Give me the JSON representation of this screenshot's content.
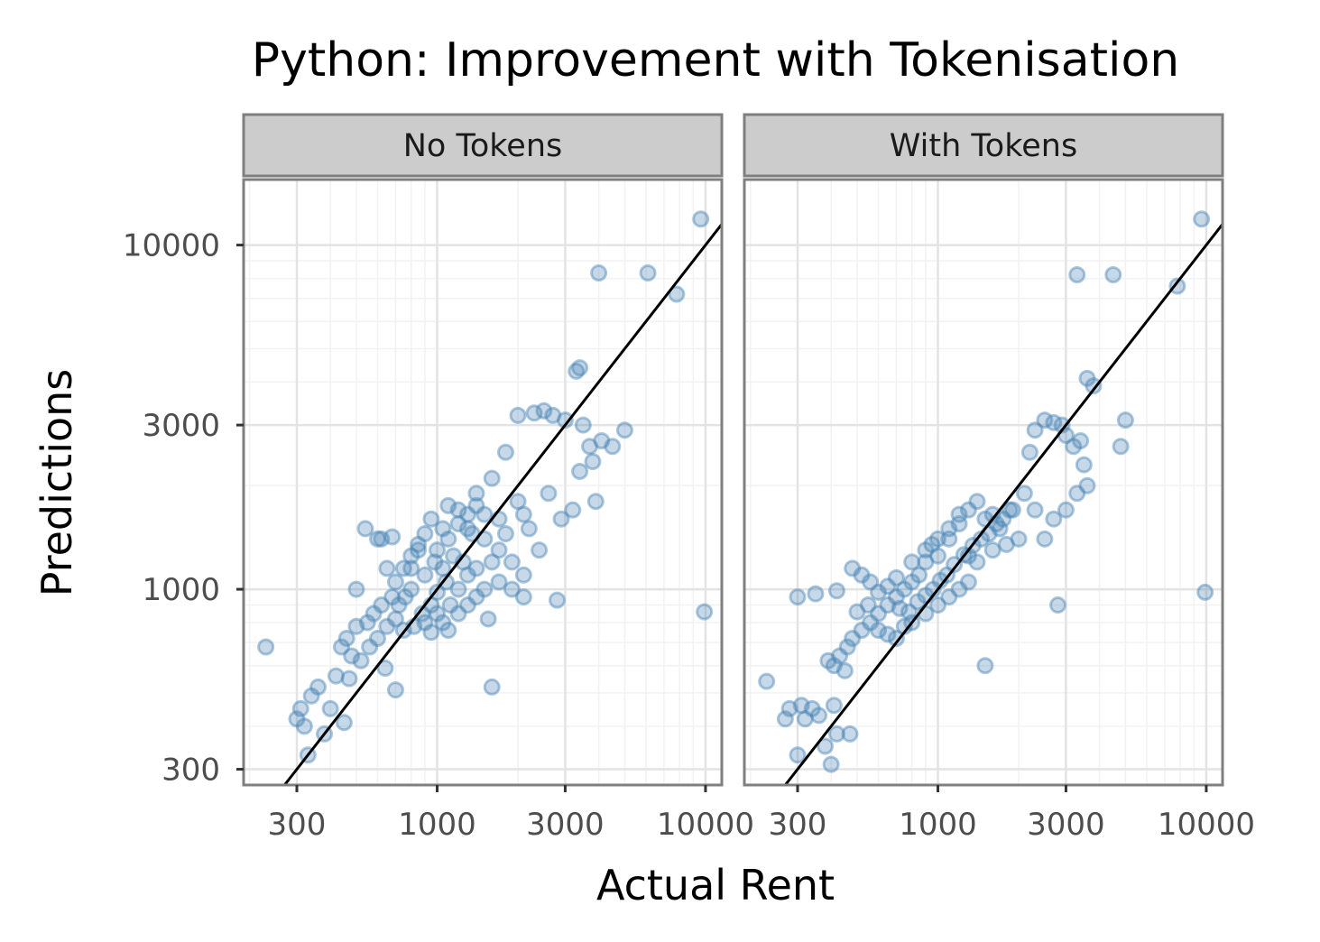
{
  "chart_data": {
    "type": "scatter",
    "title": "Python: Improvement with Tokenisation",
    "xlabel": "Actual Rent",
    "ylabel": "Predictions",
    "x_scale": "log10",
    "y_scale": "log10",
    "xlim": [
      190,
      11500
    ],
    "ylim": [
      270,
      15500
    ],
    "x_ticks": [
      300,
      1000,
      3000,
      10000
    ],
    "x_tick_labels": [
      "300",
      "1000",
      "3000",
      "10000"
    ],
    "y_ticks": [
      300,
      1000,
      3000,
      10000
    ],
    "y_tick_labels": [
      "300",
      "1000",
      "3000",
      "10000"
    ],
    "grid": true,
    "reference_line": "y = x",
    "point_color": "#4682b4",
    "line_color": "#000000",
    "strip_fill": "#cccccc",
    "panels": [
      {
        "name": "No Tokens",
        "points": [
          [
            230,
            680
          ],
          [
            310,
            450
          ],
          [
            300,
            420
          ],
          [
            320,
            400
          ],
          [
            330,
            330
          ],
          [
            340,
            490
          ],
          [
            360,
            520
          ],
          [
            380,
            380
          ],
          [
            400,
            450
          ],
          [
            420,
            560
          ],
          [
            450,
            410
          ],
          [
            470,
            550
          ],
          [
            500,
            1000
          ],
          [
            540,
            1500
          ],
          [
            600,
            1400
          ],
          [
            620,
            1400
          ],
          [
            640,
            590
          ],
          [
            650,
            1150
          ],
          [
            680,
            1420
          ],
          [
            700,
            510
          ],
          [
            1600,
            520
          ],
          [
            1550,
            820
          ],
          [
            2800,
            930
          ],
          [
            3300,
            4300
          ],
          [
            3400,
            4400
          ],
          [
            4000,
            8300
          ],
          [
            4500,
            2600
          ],
          [
            5000,
            2900
          ],
          [
            6100,
            8300
          ],
          [
            7800,
            7200
          ],
          [
            9600,
            11900
          ],
          [
            9900,
            860
          ],
          [
            2000,
            3200
          ],
          [
            2300,
            3250
          ],
          [
            2500,
            3300
          ],
          [
            2700,
            3200
          ],
          [
            3000,
            3100
          ],
          [
            3500,
            3000
          ],
          [
            3700,
            2600
          ],
          [
            3800,
            2350
          ],
          [
            3900,
            1800
          ],
          [
            4100,
            2700
          ],
          [
            3200,
            1700
          ],
          [
            2900,
            1600
          ],
          [
            2600,
            1900
          ],
          [
            2100,
            1650
          ],
          [
            3400,
            2200
          ],
          [
            1800,
            2500
          ],
          [
            1600,
            2100
          ],
          [
            1400,
            1900
          ],
          [
            1200,
            1700
          ],
          [
            1100,
            1750
          ],
          [
            1300,
            1500
          ],
          [
            1500,
            1400
          ],
          [
            1700,
            1300
          ],
          [
            1900,
            1200
          ],
          [
            2100,
            1100
          ],
          [
            2400,
            1300
          ],
          [
            2200,
            1500
          ],
          [
            2000,
            1800
          ],
          [
            1700,
            1600
          ],
          [
            1500,
            1650
          ],
          [
            1350,
            1450
          ],
          [
            1250,
            1200
          ],
          [
            1150,
            1250
          ],
          [
            1050,
            1150
          ],
          [
            980,
            1200
          ],
          [
            900,
            1100
          ],
          [
            850,
            1300
          ],
          [
            800,
            1000
          ],
          [
            760,
            950
          ],
          [
            720,
            900
          ],
          [
            880,
            850
          ],
          [
            950,
            900
          ],
          [
            1000,
            980
          ],
          [
            1080,
            1050
          ],
          [
            1120,
            900
          ],
          [
            1200,
            1000
          ],
          [
            1300,
            1100
          ],
          [
            1400,
            1150
          ],
          [
            1600,
            1200
          ],
          [
            1800,
            1450
          ],
          [
            650,
            780
          ],
          [
            600,
            720
          ],
          [
            560,
            680
          ],
          [
            520,
            620
          ],
          [
            480,
            640
          ],
          [
            700,
            820
          ],
          [
            750,
            760
          ],
          [
            820,
            780
          ],
          [
            900,
            800
          ],
          [
            950,
            750
          ],
          [
            1000,
            850
          ],
          [
            1050,
            800
          ],
          [
            1100,
            760
          ],
          [
            1200,
            850
          ],
          [
            1300,
            900
          ],
          [
            1400,
            950
          ],
          [
            1500,
            1000
          ],
          [
            1700,
            1050
          ],
          [
            1900,
            1000
          ],
          [
            2100,
            950
          ],
          [
            800,
            1250
          ],
          [
            750,
            1150
          ],
          [
            700,
            1050
          ],
          [
            680,
            950
          ],
          [
            620,
            900
          ],
          [
            580,
            850
          ],
          [
            550,
            800
          ],
          [
            500,
            780
          ],
          [
            460,
            720
          ],
          [
            440,
            680
          ],
          [
            1000,
            1300
          ],
          [
            1100,
            1400
          ],
          [
            1200,
            1550
          ],
          [
            1300,
            1650
          ],
          [
            1400,
            1750
          ],
          [
            900,
            1450
          ],
          [
            850,
            1350
          ],
          [
            800,
            1150
          ],
          [
            950,
            1600
          ],
          [
            1050,
            1500
          ]
        ]
      },
      {
        "name": "With Tokens",
        "points": [
          [
            230,
            540
          ],
          [
            270,
            420
          ],
          [
            280,
            450
          ],
          [
            300,
            330
          ],
          [
            310,
            460
          ],
          [
            320,
            420
          ],
          [
            340,
            450
          ],
          [
            360,
            430
          ],
          [
            380,
            350
          ],
          [
            400,
            310
          ],
          [
            410,
            460
          ],
          [
            420,
            380
          ],
          [
            450,
            580
          ],
          [
            470,
            380
          ],
          [
            300,
            950
          ],
          [
            350,
            970
          ],
          [
            420,
            990
          ],
          [
            480,
            1150
          ],
          [
            520,
            1100
          ],
          [
            560,
            1050
          ],
          [
            1500,
            600
          ],
          [
            2800,
            900
          ],
          [
            3300,
            8200
          ],
          [
            4500,
            8200
          ],
          [
            7800,
            7600
          ],
          [
            9600,
            11900
          ],
          [
            9900,
            980
          ],
          [
            5000,
            3100
          ],
          [
            4800,
            2600
          ],
          [
            3600,
            4100
          ],
          [
            3800,
            3900
          ],
          [
            2200,
            2500
          ],
          [
            2300,
            2900
          ],
          [
            2500,
            3100
          ],
          [
            2700,
            3050
          ],
          [
            2900,
            3000
          ],
          [
            3000,
            2800
          ],
          [
            3200,
            2600
          ],
          [
            3400,
            2700
          ],
          [
            3500,
            2300
          ],
          [
            3600,
            2000
          ],
          [
            3300,
            1900
          ],
          [
            3000,
            1700
          ],
          [
            2700,
            1600
          ],
          [
            2500,
            1400
          ],
          [
            2300,
            1700
          ],
          [
            2100,
            1900
          ],
          [
            1900,
            1700
          ],
          [
            1700,
            1500
          ],
          [
            1600,
            1650
          ],
          [
            1500,
            1600
          ],
          [
            1400,
            1800
          ],
          [
            1300,
            1700
          ],
          [
            1200,
            1550
          ],
          [
            1100,
            1400
          ],
          [
            1000,
            1250
          ],
          [
            950,
            1350
          ],
          [
            900,
            1200
          ],
          [
            850,
            1100
          ],
          [
            800,
            1050
          ],
          [
            750,
            1000
          ],
          [
            700,
            950
          ],
          [
            650,
            900
          ],
          [
            600,
            850
          ],
          [
            560,
            800
          ],
          [
            520,
            760
          ],
          [
            480,
            720
          ],
          [
            460,
            680
          ],
          [
            430,
            640
          ],
          [
            410,
            600
          ],
          [
            390,
            620
          ],
          [
            720,
            880
          ],
          [
            780,
            860
          ],
          [
            840,
            920
          ],
          [
            900,
            960
          ],
          [
            960,
            1000
          ],
          [
            1020,
            1060
          ],
          [
            1080,
            1100
          ],
          [
            1150,
            1180
          ],
          [
            1250,
            1260
          ],
          [
            1350,
            1340
          ],
          [
            1450,
            1400
          ],
          [
            1550,
            1450
          ],
          [
            1650,
            1550
          ],
          [
            1750,
            1600
          ],
          [
            1850,
            1700
          ],
          [
            600,
            760
          ],
          [
            650,
            740
          ],
          [
            700,
            720
          ],
          [
            750,
            780
          ],
          [
            800,
            800
          ],
          [
            900,
            850
          ],
          [
            1000,
            900
          ],
          [
            1100,
            950
          ],
          [
            1200,
            1000
          ],
          [
            1300,
            1050
          ],
          [
            500,
            860
          ],
          [
            550,
            900
          ],
          [
            600,
            980
          ],
          [
            650,
            1020
          ],
          [
            700,
            1080
          ],
          [
            800,
            1200
          ],
          [
            900,
            1300
          ],
          [
            1000,
            1400
          ],
          [
            1100,
            1500
          ],
          [
            1200,
            1650
          ],
          [
            1300,
            1250
          ],
          [
            1400,
            1200
          ],
          [
            1600,
            1300
          ],
          [
            1800,
            1350
          ],
          [
            2000,
            1400
          ]
        ]
      }
    ]
  }
}
